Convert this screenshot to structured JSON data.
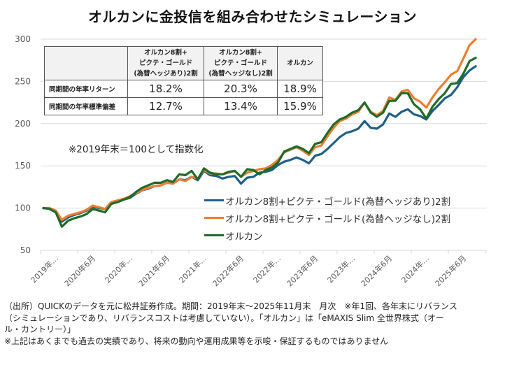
{
  "title": "オルカンに金投信を組み合わせたシミュレーション",
  "index_note": "※2019年末＝100として指数化",
  "stats_table": {
    "columns": [
      [
        "オルカン8割+",
        "ピクテ・ゴールド",
        "(為替ヘッジあり)2割"
      ],
      [
        "オルカン8割+",
        "ピクテ・ゴールド",
        "(為替ヘッジなし)2割"
      ],
      [
        "オルカン"
      ]
    ],
    "rows": [
      {
        "label": "同期間の年率リターン",
        "values": [
          "18.2%",
          "20.3%",
          "18.9%"
        ]
      },
      {
        "label": "同期間の年率標準偏差",
        "values": [
          "12.7%",
          "13.4%",
          "15.9%"
        ]
      }
    ]
  },
  "footer": [
    "（出所）QUICKのデータを元に松井証券作成。期間：2019年末～2025年11月末　月次　※年1回、各年末にリバランス",
    "（シミュレーションであり、リバランスコストは考慮していない）。「オルカン」は「eMAXIS Slim 全世界株式（オー",
    "ル・カントリー）」",
    "※上記はあくまでも過去の実績であり、将来の動向や運用成果等を示唆・保証するものではありません"
  ],
  "chart_data": {
    "type": "line",
    "title": "オルカンに金投信を組み合わせたシミュレーション",
    "xlabel": "",
    "ylabel": "",
    "ylim": [
      50,
      300
    ],
    "yticks": [
      50,
      100,
      150,
      200,
      250,
      300
    ],
    "grid": true,
    "legend_position": "center-right",
    "x_start": "2019年12月",
    "x_end": "2025年11月",
    "frequency": "monthly",
    "xtick_labels": [
      "2019年…",
      "2020年6月",
      "2020年…",
      "2021年6月",
      "2021年…",
      "2022年6月",
      "2022年…",
      "2023年6月",
      "2023年…",
      "2024年6月",
      "2024年…",
      "2025年6月"
    ],
    "series": [
      {
        "name": "オルカン8割+ピクテ・ゴールド(為替ヘッジあり)2割",
        "color": "#1f5f88",
        "values": [
          100,
          100,
          96,
          84,
          89,
          92,
          94,
          97,
          102,
          100,
          99,
          106,
          108,
          110,
          112,
          117,
          121,
          123,
          126,
          127,
          130,
          129,
          134,
          133,
          137,
          133,
          144,
          139,
          138,
          135,
          137,
          138,
          129,
          136,
          137,
          142,
          143,
          145,
          151,
          155,
          157,
          160,
          157,
          153,
          162,
          164,
          170,
          177,
          184,
          189,
          191,
          194,
          203,
          195,
          194,
          199,
          212,
          208,
          214,
          217,
          211,
          209,
          205,
          215,
          222,
          230,
          234,
          243,
          255,
          263,
          268,
          null
        ]
      },
      {
        "name": "オルカン8割+ピクテ・ゴールド(為替ヘッジなし)2割",
        "color": "#ed7d31",
        "values": [
          100,
          100,
          97,
          86,
          91,
          93,
          95,
          98,
          103,
          101,
          99,
          107,
          109,
          111,
          114,
          118,
          121,
          124,
          126,
          127,
          130,
          129,
          134,
          132,
          137,
          135,
          145,
          141,
          141,
          140,
          142,
          144,
          137,
          142,
          144,
          146,
          147,
          151,
          157,
          166,
          169,
          172,
          168,
          163,
          172,
          174,
          185,
          195,
          203,
          206,
          211,
          214,
          225,
          214,
          210,
          215,
          231,
          228,
          238,
          240,
          230,
          226,
          219,
          231,
          241,
          249,
          258,
          262,
          277,
          293,
          300,
          null
        ]
      },
      {
        "name": "オルカン",
        "color": "#1e6b28",
        "values": [
          100,
          99,
          95,
          78,
          85,
          88,
          90,
          93,
          99,
          97,
          95,
          105,
          107,
          110,
          113,
          119,
          124,
          127,
          130,
          130,
          133,
          131,
          140,
          139,
          144,
          134,
          147,
          142,
          140,
          140,
          143,
          144,
          137,
          146,
          145,
          140,
          145,
          148,
          154,
          167,
          170,
          173,
          170,
          165,
          176,
          178,
          189,
          199,
          205,
          208,
          213,
          216,
          225,
          213,
          208,
          213,
          227,
          227,
          236,
          236,
          223,
          217,
          206,
          220,
          229,
          236,
          247,
          248,
          259,
          274,
          278,
          null
        ]
      }
    ]
  },
  "legend": [
    {
      "label": "オルカン8割+ピクテ・ゴールド(為替ヘッジあり)2割",
      "color": "#1f5f88"
    },
    {
      "label": "オルカン8割+ピクテ・ゴールド(為替ヘッジなし)2割",
      "color": "#ed7d31"
    },
    {
      "label": "オルカン",
      "color": "#1e6b28"
    }
  ]
}
